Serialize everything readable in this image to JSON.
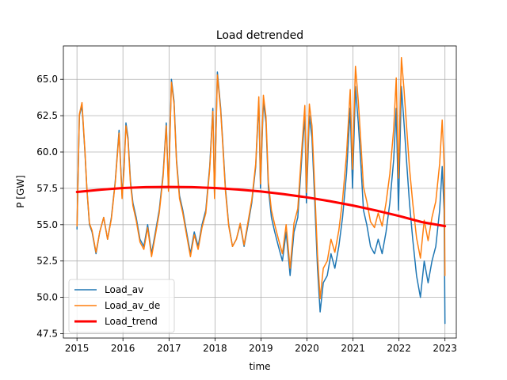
{
  "chart_data": {
    "type": "line",
    "title": "Load detrended",
    "xlabel": "time",
    "ylabel": "P [GW]",
    "xlim": [
      "2014-09-15",
      "2023-04-01"
    ],
    "ylim": [
      47.2,
      67.3
    ],
    "x_ticks": [
      "2015",
      "2016",
      "2017",
      "2018",
      "2019",
      "2020",
      "2021",
      "2022",
      "2023"
    ],
    "y_ticks": [
      "47.5",
      "50.0",
      "52.5",
      "55.0",
      "57.5",
      "60.0",
      "62.5",
      "65.0"
    ],
    "grid": true,
    "legend_position": "lower-left",
    "colors": {
      "Load_av": "#1f77b4",
      "Load_av_de": "#ff7f0e",
      "Load_trend": "#ff0000"
    },
    "series": [
      {
        "name": "Load_av",
        "x": [
          "2015-01-01",
          "2015-01-20",
          "2015-02-10",
          "2015-03-05",
          "2015-03-20",
          "2015-04-10",
          "2015-05-01",
          "2015-06-01",
          "2015-07-01",
          "2015-08-01",
          "2015-09-01",
          "2015-10-01",
          "2015-11-01",
          "2015-12-01",
          "2015-12-25",
          "2016-01-10",
          "2016-01-25",
          "2016-02-10",
          "2016-03-01",
          "2016-03-20",
          "2016-04-15",
          "2016-05-15",
          "2016-06-15",
          "2016-07-15",
          "2016-08-15",
          "2016-09-15",
          "2016-10-15",
          "2016-11-15",
          "2016-12-10",
          "2016-12-28",
          "2017-01-20",
          "2017-02-10",
          "2017-03-01",
          "2017-03-25",
          "2017-04-20",
          "2017-05-20",
          "2017-06-20",
          "2017-07-20",
          "2017-08-20",
          "2017-09-20",
          "2017-10-20",
          "2017-11-20",
          "2017-12-15",
          "2017-12-28",
          "2018-01-20",
          "2018-02-15",
          "2018-03-05",
          "2018-03-25",
          "2018-04-20",
          "2018-05-20",
          "2018-06-20",
          "2018-07-20",
          "2018-08-20",
          "2018-09-20",
          "2018-10-20",
          "2018-11-20",
          "2018-12-15",
          "2018-12-28",
          "2019-01-20",
          "2019-02-10",
          "2019-03-01",
          "2019-03-25",
          "2019-04-20",
          "2019-05-20",
          "2019-06-20",
          "2019-07-20",
          "2019-08-20",
          "2019-09-20",
          "2019-10-20",
          "2019-11-20",
          "2019-12-15",
          "2019-12-28",
          "2020-01-20",
          "2020-02-10",
          "2020-03-01",
          "2020-03-25",
          "2020-04-15",
          "2020-05-10",
          "2020-06-10",
          "2020-07-10",
          "2020-08-10",
          "2020-09-10",
          "2020-10-10",
          "2020-11-10",
          "2020-12-10",
          "2020-12-28",
          "2021-01-20",
          "2021-02-12",
          "2021-03-05",
          "2021-03-25",
          "2021-04-20",
          "2021-05-20",
          "2021-06-20",
          "2021-07-20",
          "2021-08-20",
          "2021-09-20",
          "2021-10-20",
          "2021-11-20",
          "2021-12-10",
          "2021-12-28",
          "2022-01-20",
          "2022-02-10",
          "2022-03-05",
          "2022-03-25",
          "2022-04-20",
          "2022-05-20",
          "2022-06-20",
          "2022-07-20",
          "2022-08-20",
          "2022-09-20",
          "2022-10-20",
          "2022-11-20",
          "2022-12-10",
          "2022-12-25",
          "2023-01-01"
        ],
        "y": [
          54.7,
          62.5,
          63.2,
          60.0,
          57.5,
          55.0,
          54.5,
          53.0,
          54.5,
          55.5,
          54.0,
          55.5,
          58.0,
          61.5,
          57.0,
          59.0,
          62.0,
          61.0,
          58.0,
          56.5,
          55.5,
          54.0,
          53.5,
          55.0,
          53.0,
          54.5,
          56.0,
          58.5,
          62.0,
          57.5,
          65.0,
          63.5,
          59.5,
          57.0,
          56.0,
          54.5,
          53.0,
          54.5,
          53.5,
          55.0,
          56.0,
          59.0,
          63.0,
          57.0,
          65.5,
          63.0,
          60.5,
          57.5,
          55.0,
          53.5,
          54.0,
          55.0,
          53.5,
          55.0,
          56.5,
          59.0,
          63.5,
          57.5,
          63.5,
          62.0,
          57.5,
          55.5,
          54.5,
          53.5,
          52.5,
          54.5,
          51.5,
          54.5,
          55.5,
          59.5,
          62.5,
          56.5,
          62.5,
          61.0,
          57.0,
          52.0,
          49.0,
          51.0,
          51.5,
          53.0,
          52.0,
          53.5,
          55.5,
          58.5,
          63.0,
          57.5,
          64.5,
          62.0,
          59.0,
          56.0,
          55.0,
          53.5,
          53.0,
          54.0,
          53.0,
          54.5,
          56.5,
          59.5,
          63.0,
          56.0,
          64.5,
          62.0,
          59.0,
          56.5,
          54.0,
          51.5,
          50.0,
          52.5,
          51.0,
          52.5,
          53.5,
          56.0,
          59.0,
          56.0,
          48.2
        ]
      },
      {
        "name": "Load_av_de",
        "x": [
          "2015-01-01",
          "2015-01-20",
          "2015-02-10",
          "2015-03-05",
          "2015-03-20",
          "2015-04-10",
          "2015-05-01",
          "2015-06-01",
          "2015-07-01",
          "2015-08-01",
          "2015-09-01",
          "2015-10-01",
          "2015-11-01",
          "2015-12-01",
          "2015-12-25",
          "2016-01-10",
          "2016-01-25",
          "2016-02-10",
          "2016-03-01",
          "2016-03-20",
          "2016-04-15",
          "2016-05-15",
          "2016-06-15",
          "2016-07-15",
          "2016-08-15",
          "2016-09-15",
          "2016-10-15",
          "2016-11-15",
          "2016-12-10",
          "2016-12-28",
          "2017-01-20",
          "2017-02-10",
          "2017-03-01",
          "2017-03-25",
          "2017-04-20",
          "2017-05-20",
          "2017-06-20",
          "2017-07-20",
          "2017-08-20",
          "2017-09-20",
          "2017-10-20",
          "2017-11-20",
          "2017-12-15",
          "2017-12-28",
          "2018-01-20",
          "2018-02-15",
          "2018-03-05",
          "2018-03-25",
          "2018-04-20",
          "2018-05-20",
          "2018-06-20",
          "2018-07-20",
          "2018-08-20",
          "2018-09-20",
          "2018-10-20",
          "2018-11-20",
          "2018-12-15",
          "2018-12-28",
          "2019-01-20",
          "2019-02-10",
          "2019-03-01",
          "2019-03-25",
          "2019-04-20",
          "2019-05-20",
          "2019-06-20",
          "2019-07-20",
          "2019-08-20",
          "2019-09-20",
          "2019-10-20",
          "2019-11-20",
          "2019-12-15",
          "2019-12-28",
          "2020-01-20",
          "2020-02-10",
          "2020-03-01",
          "2020-03-25",
          "2020-04-15",
          "2020-05-10",
          "2020-06-10",
          "2020-07-10",
          "2020-08-10",
          "2020-09-10",
          "2020-10-10",
          "2020-11-10",
          "2020-12-10",
          "2020-12-28",
          "2021-01-20",
          "2021-02-12",
          "2021-03-05",
          "2021-03-25",
          "2021-04-20",
          "2021-05-20",
          "2021-06-20",
          "2021-07-20",
          "2021-08-20",
          "2021-09-20",
          "2021-10-20",
          "2021-11-20",
          "2021-12-10",
          "2021-12-28",
          "2022-01-20",
          "2022-02-10",
          "2022-03-05",
          "2022-03-25",
          "2022-04-20",
          "2022-05-20",
          "2022-06-20",
          "2022-07-20",
          "2022-08-20",
          "2022-09-20",
          "2022-10-20",
          "2022-11-20",
          "2022-12-10",
          "2022-12-25",
          "2023-01-01"
        ],
        "y": [
          54.9,
          62.6,
          63.4,
          60.1,
          57.6,
          55.1,
          54.6,
          53.1,
          54.5,
          55.5,
          54.0,
          55.4,
          57.9,
          61.3,
          56.8,
          58.8,
          61.8,
          60.8,
          57.8,
          56.3,
          55.3,
          53.8,
          53.3,
          54.8,
          52.8,
          54.3,
          55.8,
          58.3,
          61.8,
          57.3,
          64.8,
          63.3,
          59.3,
          56.8,
          55.8,
          54.3,
          52.8,
          54.3,
          53.3,
          54.8,
          55.8,
          58.8,
          62.8,
          56.8,
          65.3,
          62.8,
          60.3,
          57.3,
          54.9,
          53.5,
          54.0,
          55.1,
          53.6,
          55.2,
          56.7,
          59.2,
          63.8,
          57.8,
          63.9,
          62.4,
          57.9,
          56.0,
          55.0,
          54.0,
          53.0,
          55.0,
          52.0,
          55.1,
          56.1,
          60.1,
          63.2,
          57.2,
          63.3,
          61.8,
          57.9,
          52.9,
          49.9,
          52.0,
          52.5,
          54.0,
          53.1,
          54.6,
          56.7,
          59.8,
          64.3,
          58.8,
          65.9,
          63.5,
          60.5,
          57.6,
          56.6,
          55.2,
          54.8,
          55.8,
          54.9,
          56.5,
          58.5,
          61.6,
          65.1,
          58.2,
          66.5,
          64.3,
          61.4,
          58.9,
          56.5,
          54.1,
          52.7,
          55.3,
          53.9,
          55.5,
          56.6,
          59.2,
          62.2,
          59.2,
          51.5
        ]
      },
      {
        "name": "Load_trend",
        "x": [
          "2015-01-01",
          "2015-07-01",
          "2016-01-01",
          "2016-07-01",
          "2017-01-01",
          "2017-07-01",
          "2018-01-01",
          "2018-07-01",
          "2019-01-01",
          "2019-07-01",
          "2020-01-01",
          "2020-07-01",
          "2021-01-01",
          "2021-07-01",
          "2022-01-01",
          "2022-07-01",
          "2023-01-01"
        ],
        "y": [
          57.25,
          57.4,
          57.52,
          57.58,
          57.6,
          57.58,
          57.52,
          57.42,
          57.28,
          57.1,
          56.88,
          56.62,
          56.32,
          55.98,
          55.6,
          55.18,
          54.9
        ]
      }
    ]
  }
}
